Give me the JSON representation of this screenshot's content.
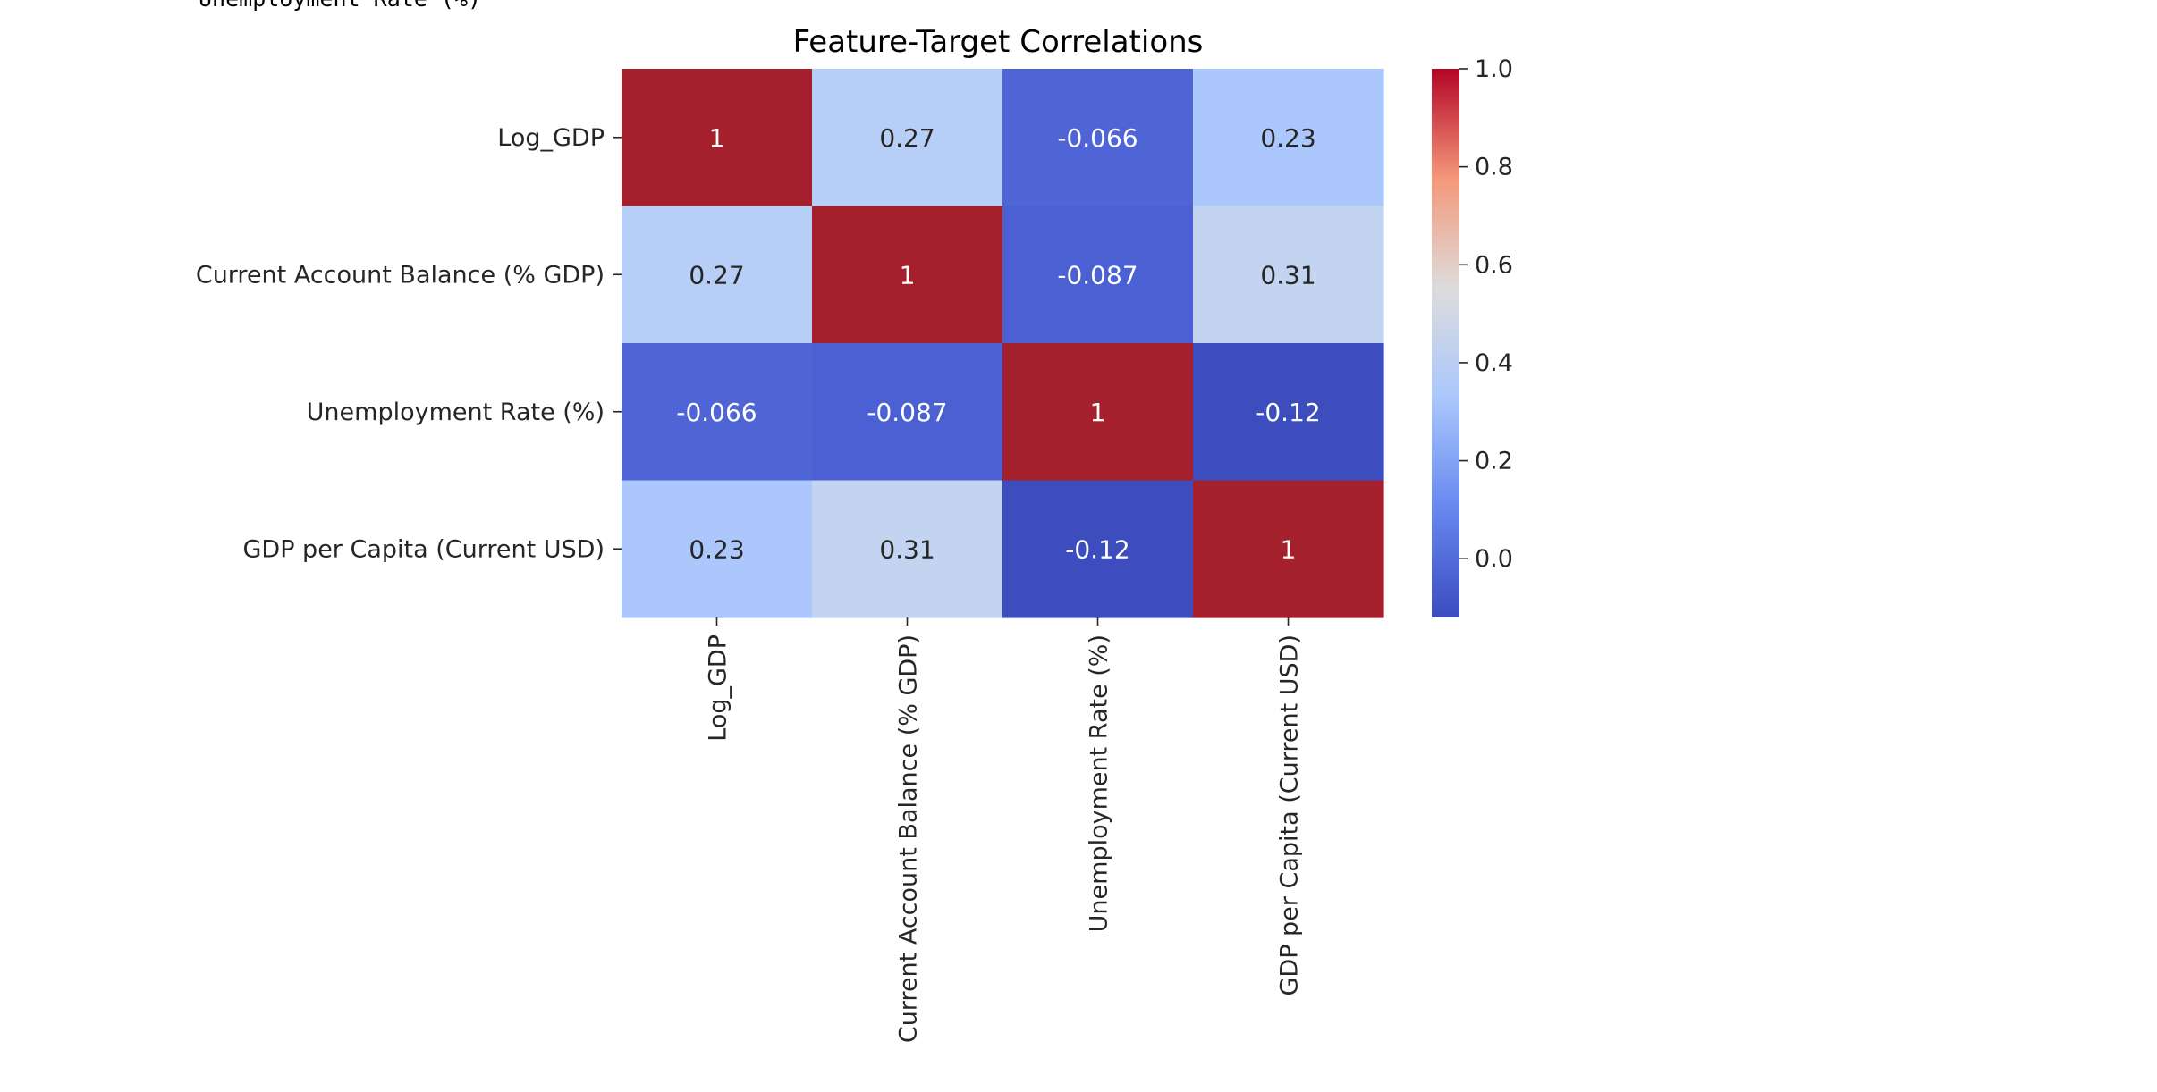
{
  "output_cell": {
    "stdout_text": "Unemployment Rate (%)"
  },
  "chart_data": {
    "type": "heatmap",
    "title": "Feature-Target Correlations",
    "xlabel": "",
    "ylabel": "",
    "row_labels": [
      "Log_GDP",
      "Current Account Balance (% GDP)",
      "Unemployment Rate (%)",
      "GDP per Capita (Current USD)"
    ],
    "col_labels": [
      "Log_GDP",
      "Current Account Balance (% GDP)",
      "Unemployment Rate (%)",
      "GDP per Capita (Current USD)"
    ],
    "values": [
      [
        1,
        0.27,
        -0.066,
        0.23
      ],
      [
        0.27,
        1,
        -0.087,
        0.31
      ],
      [
        -0.066,
        -0.087,
        1,
        -0.12
      ],
      [
        0.23,
        0.31,
        -0.12,
        1
      ]
    ],
    "annotations": [
      [
        "1",
        "0.27",
        "-0.066",
        "0.23"
      ],
      [
        "0.27",
        "1",
        "-0.087",
        "0.31"
      ],
      [
        "-0.066",
        "-0.087",
        "1",
        "-0.12"
      ],
      [
        "0.23",
        "0.31",
        "-0.12",
        "1"
      ]
    ],
    "colormap": "coolwarm",
    "color_range": [
      -0.12,
      1.0
    ],
    "colorbar": {
      "ticks": [
        0.0,
        0.2,
        0.4,
        0.6,
        0.8,
        1.0
      ],
      "tick_labels": [
        "0.0",
        "0.2",
        "0.4",
        "0.6",
        "0.8",
        "1.0"
      ]
    },
    "cell_colors": [
      [
        "#a5202d",
        "#b7cef6",
        "#5065d5",
        "#abc7fc"
      ],
      [
        "#b7cef6",
        "#a5202d",
        "#4b60d2",
        "#c3d4f0"
      ],
      [
        "#5065d5",
        "#4b60d2",
        "#a5202d",
        "#3d4dbe"
      ],
      [
        "#abc7fc",
        "#c3d4f0",
        "#3d4dbe",
        "#a5202d"
      ]
    ],
    "annotation_colors": [
      [
        "#ffffff",
        "#262626",
        "#ffffff",
        "#262626"
      ],
      [
        "#262626",
        "#ffffff",
        "#ffffff",
        "#262626"
      ],
      [
        "#ffffff",
        "#ffffff",
        "#ffffff",
        "#ffffff"
      ],
      [
        "#262626",
        "#262626",
        "#ffffff",
        "#ffffff"
      ]
    ],
    "colorbar_gradient": [
      "#b40426",
      "#f4987a",
      "#dddcdc",
      "#aac7fd",
      "#6788ee",
      "#3b4cc0"
    ],
    "text_color": "#262626",
    "grid": false
  }
}
